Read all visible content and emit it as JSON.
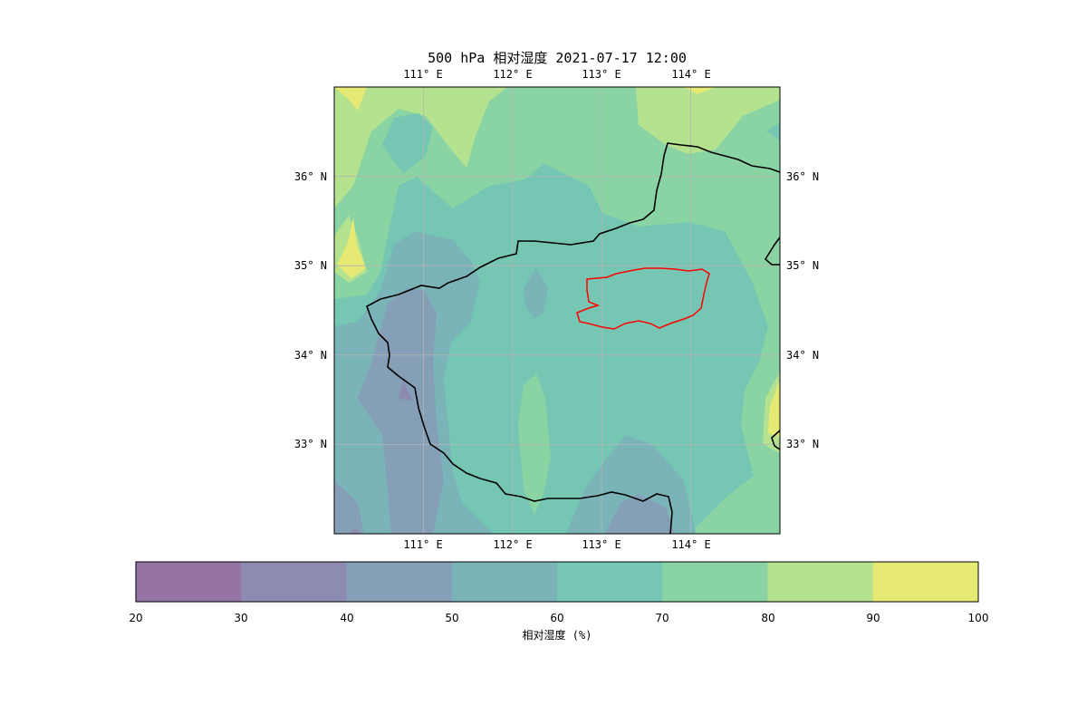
{
  "title": "500 hPa 相对湿度 2021-07-17 12:00",
  "map": {
    "lon_range": [
      110.0,
      115.0
    ],
    "lat_range": [
      32.0,
      37.0
    ],
    "lon_ticks": [
      "111° E",
      "112° E",
      "113° E",
      "114° E"
    ],
    "lat_ticks": [
      "36° N",
      "35° N",
      "34° N",
      "33° N"
    ],
    "gridlines": true,
    "province_border_color": "#000000",
    "highlight_region_color": "#ff0000"
  },
  "colorbar": {
    "levels": [
      "20",
      "30",
      "40",
      "50",
      "60",
      "70",
      "80",
      "90",
      "100"
    ],
    "colors": [
      "#9574a3",
      "#8d8bb2",
      "#849fb6",
      "#7ab4b9",
      "#76c6b4",
      "#8ad4a4",
      "#b5e28f",
      "#e6ea74"
    ],
    "label": "相对湿度 (%)"
  }
}
